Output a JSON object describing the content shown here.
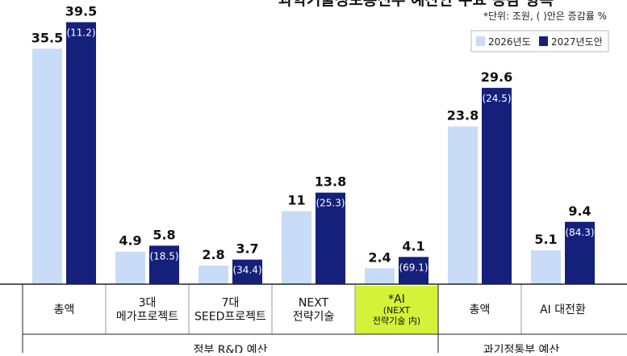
{
  "title": "과학기술정보통신부 예산안 주요 증감 항목",
  "unit_note": "*단위: 조원, ( )안은 증감률 %",
  "colors": {
    "series_2026": "#c9dcf7",
    "series_2027": "#14207a",
    "highlight_bg": "#d4f23a",
    "axis": "#222222",
    "divider": "#999999"
  },
  "chart_data": {
    "type": "bar",
    "title": "과학기술정보통신부 예산안 주요 증감 항목",
    "unit": "*단위: 조원, ( )안은 증감률 %",
    "legend_position": "top-right",
    "grid": false,
    "ylim": [
      0,
      40
    ],
    "categories": [
      {
        "lines": [
          "총액"
        ]
      },
      {
        "lines": [
          "3대",
          "메가프로젝트"
        ]
      },
      {
        "lines": [
          "7대",
          "SEED프로젝트"
        ]
      },
      {
        "lines": [
          "NEXT",
          "전략기술"
        ]
      },
      {
        "lines": [
          "*AI",
          "(NEXT",
          "전략기술 内)"
        ],
        "highlight": true
      },
      {
        "lines": [
          "총액"
        ]
      },
      {
        "lines": [
          "AI 대전환"
        ]
      }
    ],
    "series": [
      {
        "name": "2026년도",
        "values": [
          35.5,
          4.9,
          2.8,
          11,
          2.4,
          23.8,
          5.1
        ]
      },
      {
        "name": "2027년도안",
        "values": [
          39.5,
          5.8,
          3.7,
          13.8,
          4.1,
          29.6,
          9.4
        ]
      }
    ],
    "growth_labels": [
      "(11.2)",
      "(18.5)",
      "(34.4)",
      "(25.3)",
      "(69.1)",
      "(24.5)",
      "(84.3)"
    ],
    "groups": [
      {
        "label": "정부 R&D 예산",
        "from": 0,
        "to": 4
      },
      {
        "label": "과기정통부 예산",
        "from": 5,
        "to": 6
      }
    ]
  }
}
